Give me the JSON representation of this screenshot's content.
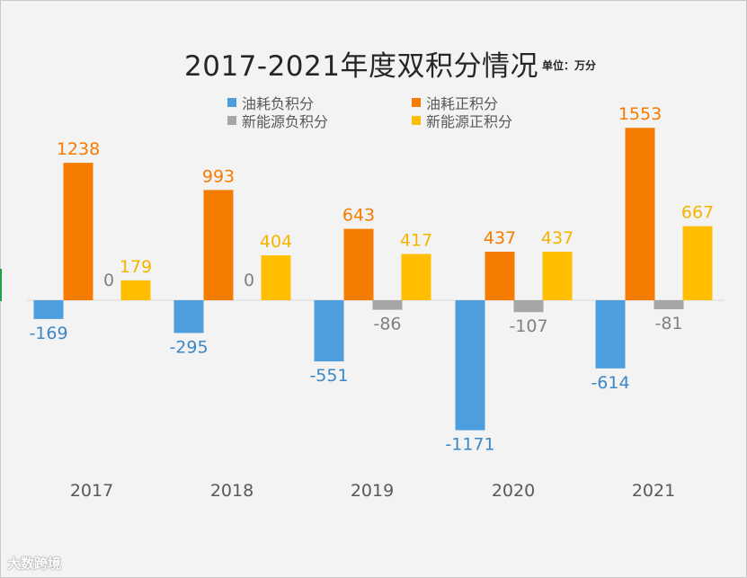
{
  "title": "2017-2021年度双积分情况",
  "unit_label": "单位：万分",
  "watermark": "大数跨境",
  "chart_data": {
    "type": "bar",
    "title": "2017-2021年度双积分情况",
    "categories": [
      "2017",
      "2018",
      "2019",
      "2020",
      "2021"
    ],
    "series": [
      {
        "name": "油耗负积分",
        "color": "#4e9edd",
        "values": [
          -169,
          -295,
          -551,
          -1171,
          -614
        ]
      },
      {
        "name": "油耗正积分",
        "color": "#f57c00",
        "values": [
          1238,
          993,
          643,
          437,
          1553
        ]
      },
      {
        "name": "新能源负积分",
        "color": "#a6a6a6",
        "values": [
          0,
          0,
          -86,
          -107,
          -81
        ]
      },
      {
        "name": "新能源正积分",
        "color": "#ffbf00",
        "values": [
          179,
          404,
          417,
          437,
          667
        ]
      }
    ],
    "data_labels": [
      [
        "-169",
        "-295",
        "-551",
        "-1171",
        "-614"
      ],
      [
        "1238",
        "993",
        "643",
        "437",
        "1553"
      ],
      [
        "0",
        "0",
        "-86",
        "-107",
        "-81"
      ],
      [
        "179",
        "404",
        "417",
        "437",
        "667"
      ]
    ],
    "legend_position": "top",
    "grid": false,
    "ylim": [
      -1200,
      1600
    ]
  }
}
